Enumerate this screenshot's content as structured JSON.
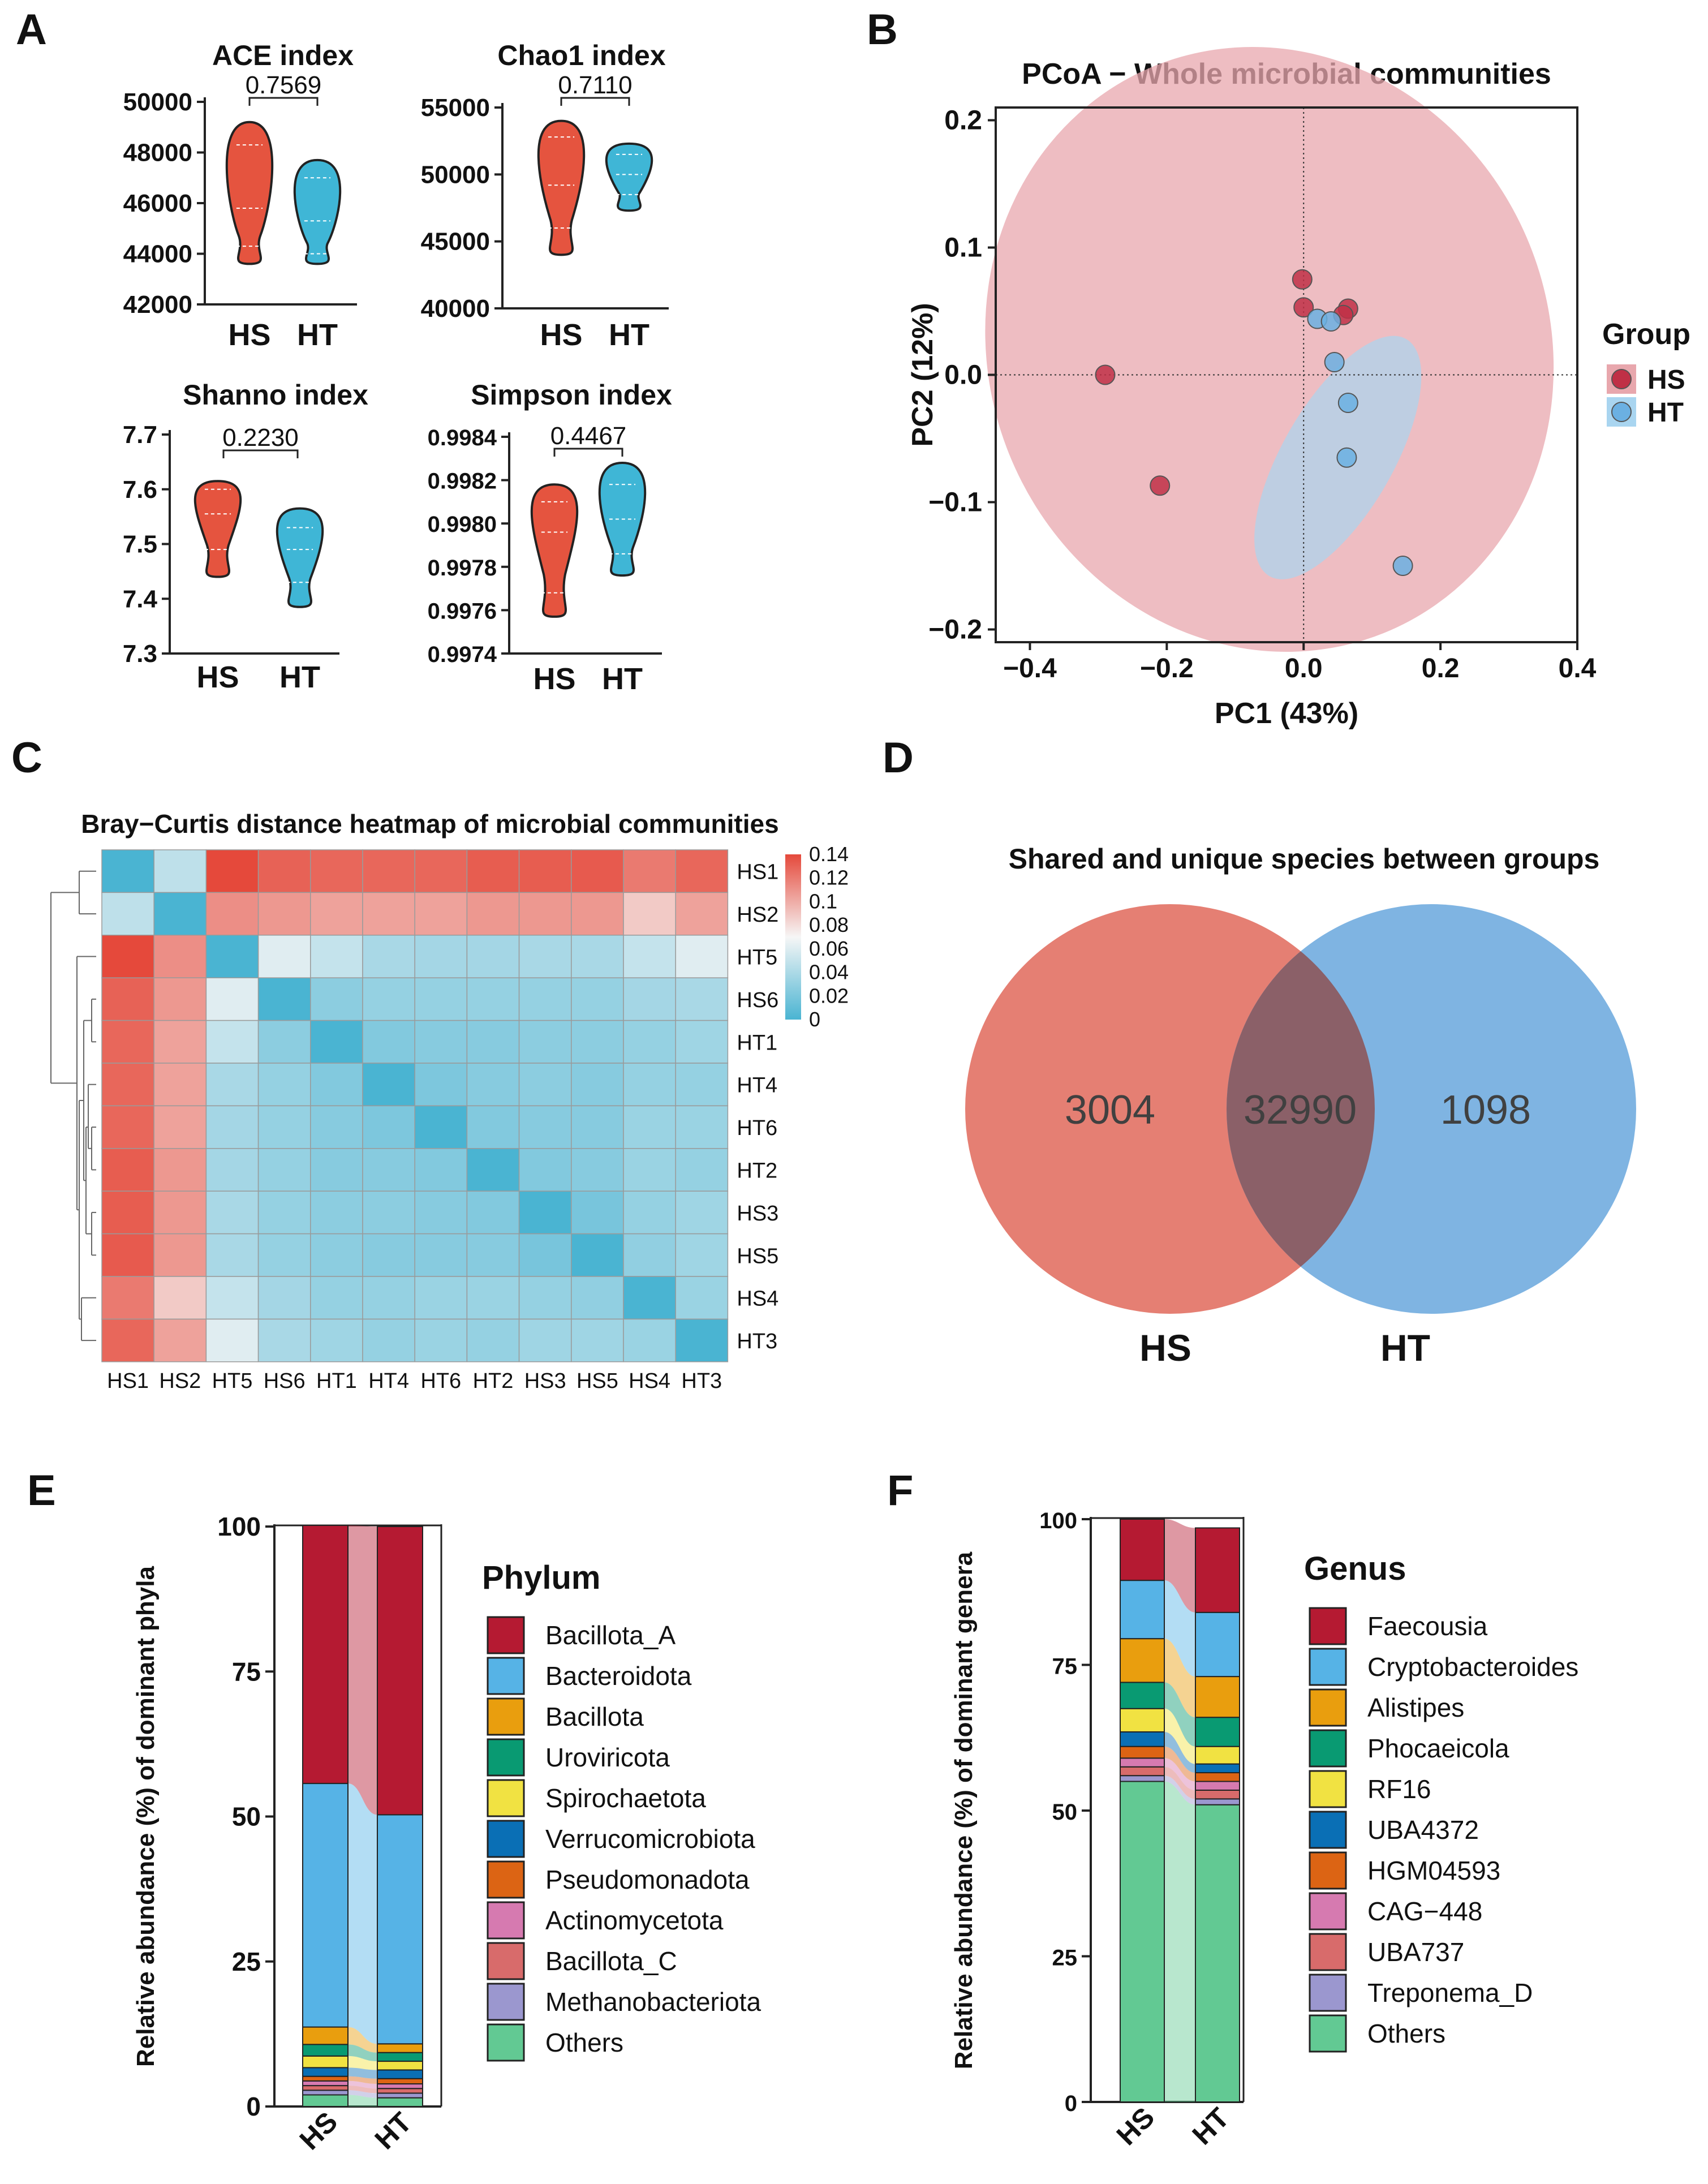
{
  "panel_letters": [
    "A",
    "B",
    "C",
    "D",
    "E",
    "F"
  ],
  "colors": {
    "HS": "#e5543f",
    "HT": "#3fb6d6",
    "pcoa_HS": "#c03046",
    "pcoa_HT": "#6bb0e2",
    "venn_HS": "#e57f73",
    "venn_HT": "#7fb4e2",
    "venn_overlap": "#8b6068",
    "heat_low": "#4ab4d2",
    "heat_mid": "#f6f6f6",
    "heat_high": "#e5493b"
  },
  "chart_data": [
    {
      "panel": "A",
      "type": "violin",
      "title": "ACE index",
      "categories": [
        "HS",
        "HT"
      ],
      "p_value": "0.7569",
      "yticks": [
        "42000",
        "44000",
        "46000",
        "48000",
        "50000"
      ],
      "ylim": [
        42000,
        50000
      ],
      "series": [
        {
          "name": "HS",
          "min": 43600,
          "max": 49200,
          "median": 45800,
          "q1": 44300,
          "q3": 48300
        },
        {
          "name": "HT",
          "min": 43600,
          "max": 47700,
          "median": 45300,
          "q1": 44000,
          "q3": 47000
        }
      ]
    },
    {
      "panel": "A",
      "type": "violin",
      "title": "Chao1 index",
      "categories": [
        "HS",
        "HT"
      ],
      "p_value": "0.7110",
      "yticks": [
        "40000",
        "45000",
        "50000",
        "55000"
      ],
      "ylim": [
        40000,
        55000
      ],
      "series": [
        {
          "name": "HS",
          "min": 44000,
          "max": 54000,
          "median": 49200,
          "q1": 46000,
          "q3": 52800
        },
        {
          "name": "HT",
          "min": 47300,
          "max": 52300,
          "median": 50000,
          "q1": 48500,
          "q3": 51500
        }
      ]
    },
    {
      "panel": "A",
      "type": "violin",
      "title": "Shanno index",
      "categories": [
        "HS",
        "HT"
      ],
      "p_value": "0.2230",
      "yticks": [
        "7.3",
        "7.4",
        "7.5",
        "7.6",
        "7.7"
      ],
      "ylim": [
        7.3,
        7.7
      ],
      "series": [
        {
          "name": "HS",
          "min": 7.44,
          "max": 7.615,
          "median": 7.555,
          "q1": 7.49,
          "q3": 7.6
        },
        {
          "name": "HT",
          "min": 7.385,
          "max": 7.565,
          "median": 7.49,
          "q1": 7.43,
          "q3": 7.53
        }
      ]
    },
    {
      "panel": "A",
      "type": "violin",
      "title": "Simpson index",
      "categories": [
        "HS",
        "HT"
      ],
      "p_value": "0.4467",
      "yticks": [
        "0.9974",
        "0.9976",
        "0.9978",
        "0.9980",
        "0.9982",
        "0.9984"
      ],
      "ylim": [
        0.9974,
        0.9984
      ],
      "series": [
        {
          "name": "HS",
          "min": 0.99757,
          "max": 0.99818,
          "median": 0.99796,
          "q1": 0.99768,
          "q3": 0.9981
        },
        {
          "name": "HT",
          "min": 0.99776,
          "max": 0.99828,
          "median": 0.99802,
          "q1": 0.99786,
          "q3": 0.99818
        }
      ]
    },
    {
      "panel": "B",
      "type": "scatter",
      "title": "PCoA − Whole microbial communities",
      "xlabel": "PC1 (43%)",
      "ylabel": "PC2 (12%)",
      "xlim": [
        -0.45,
        0.4
      ],
      "ylim": [
        -0.21,
        0.21
      ],
      "xticks": [
        "−0.4",
        "−0.2",
        "0.0",
        "0.2",
        "0.4"
      ],
      "xtick_values": [
        -0.4,
        -0.2,
        0.0,
        0.2,
        0.4
      ],
      "yticks": [
        "−0.2",
        "−0.1",
        "0.0",
        "0.1",
        "0.2"
      ],
      "ytick_values": [
        -0.2,
        -0.1,
        0.0,
        0.1,
        0.2
      ],
      "legend_title": "Group",
      "legend_position": "right",
      "series": [
        {
          "name": "HS",
          "points": [
            [
              -0.29,
              0.0
            ],
            [
              -0.21,
              -0.087
            ],
            [
              -0.002,
              0.075
            ],
            [
              0.0,
              0.053
            ],
            [
              0.065,
              0.052
            ],
            [
              0.058,
              0.047
            ]
          ]
        },
        {
          "name": "HT",
          "points": [
            [
              0.02,
              0.044
            ],
            [
              0.04,
              0.042
            ],
            [
              0.045,
              0.01
            ],
            [
              0.065,
              -0.022
            ],
            [
              0.063,
              -0.065
            ],
            [
              0.145,
              -0.15
            ]
          ]
        }
      ],
      "ellipses": [
        {
          "name": "HS",
          "center": [
            -0.05,
            0.02
          ],
          "rx": 0.41,
          "ry": 0.155,
          "angle_deg": -22
        },
        {
          "name": "HT",
          "center": [
            0.05,
            -0.065
          ],
          "rx": 0.2,
          "ry": 0.028,
          "angle_deg": -60
        }
      ]
    },
    {
      "panel": "C",
      "type": "heatmap",
      "title": "Bray−Curtis distance heatmap of microbial communities",
      "rows": [
        "HS1",
        "HS2",
        "HT5",
        "HS6",
        "HT1",
        "HT4",
        "HT6",
        "HT2",
        "HS3",
        "HS5",
        "HS4",
        "HT3"
      ],
      "columns": [
        "HS1",
        "HS2",
        "HT5",
        "HS6",
        "HT1",
        "HT4",
        "HT6",
        "HT2",
        "HS3",
        "HS5",
        "HS4",
        "HT3"
      ],
      "scale_ticks": [
        "0.14",
        "0.12",
        "0.1",
        "0.08",
        "0.06",
        "0.04",
        "0.02",
        "0"
      ],
      "range": [
        0,
        0.14
      ],
      "values": [
        [
          0.0,
          0.045,
          0.14,
          0.13,
          0.128,
          0.128,
          0.128,
          0.132,
          0.132,
          0.133,
          0.12,
          0.128
        ],
        [
          0.045,
          0.0,
          0.112,
          0.108,
          0.104,
          0.104,
          0.104,
          0.108,
          0.108,
          0.108,
          0.088,
          0.104
        ],
        [
          0.14,
          0.112,
          0.0,
          0.06,
          0.048,
          0.036,
          0.034,
          0.034,
          0.036,
          0.036,
          0.048,
          0.06
        ],
        [
          0.13,
          0.108,
          0.06,
          0.0,
          0.024,
          0.028,
          0.028,
          0.028,
          0.028,
          0.028,
          0.034,
          0.036
        ],
        [
          0.128,
          0.104,
          0.048,
          0.024,
          0.0,
          0.02,
          0.022,
          0.022,
          0.024,
          0.024,
          0.028,
          0.032
        ],
        [
          0.128,
          0.104,
          0.036,
          0.028,
          0.02,
          0.0,
          0.018,
          0.022,
          0.024,
          0.022,
          0.028,
          0.028
        ],
        [
          0.128,
          0.104,
          0.034,
          0.028,
          0.022,
          0.018,
          0.0,
          0.02,
          0.022,
          0.022,
          0.03,
          0.03
        ],
        [
          0.132,
          0.108,
          0.034,
          0.028,
          0.022,
          0.022,
          0.02,
          0.0,
          0.02,
          0.022,
          0.03,
          0.028
        ],
        [
          0.132,
          0.108,
          0.036,
          0.028,
          0.024,
          0.024,
          0.022,
          0.02,
          0.0,
          0.016,
          0.028,
          0.032
        ],
        [
          0.133,
          0.108,
          0.036,
          0.028,
          0.024,
          0.022,
          0.022,
          0.022,
          0.016,
          0.0,
          0.026,
          0.032
        ],
        [
          0.12,
          0.088,
          0.048,
          0.034,
          0.028,
          0.028,
          0.03,
          0.03,
          0.028,
          0.026,
          0.0,
          0.03
        ],
        [
          0.128,
          0.104,
          0.06,
          0.036,
          0.032,
          0.028,
          0.03,
          0.028,
          0.032,
          0.032,
          0.03,
          0.0
        ]
      ]
    },
    {
      "panel": "D",
      "type": "venn",
      "title": "Shared and unique species between groups",
      "sets": [
        "HS",
        "HT"
      ],
      "HS_only": "3004",
      "shared": "32990",
      "HT_only": "1098"
    },
    {
      "panel": "E",
      "type": "stacked_bar",
      "legend_title": "Phylum",
      "ylabel": "Relative abundance (%) of dominant phyla",
      "categories": [
        "HS",
        "HT"
      ],
      "ylim": [
        0,
        100
      ],
      "yticks": [
        "0",
        "25",
        "50",
        "75",
        "100"
      ],
      "series": [
        {
          "name": "Others",
          "color": "#62c993",
          "values": [
            2.0,
            1.5
          ]
        },
        {
          "name": "Methanobacteriota",
          "color": "#9b97cf",
          "values": [
            0.8,
            0.8
          ]
        },
        {
          "name": "Bacillota_C",
          "color": "#d86b6b",
          "values": [
            0.8,
            0.8
          ]
        },
        {
          "name": "Actinomycetota",
          "color": "#d67ab0",
          "values": [
            0.8,
            0.8
          ]
        },
        {
          "name": "Pseudomonadota",
          "color": "#dc6414",
          "values": [
            0.8,
            0.9
          ]
        },
        {
          "name": "Verrucomicrobiota",
          "color": "#0a6fb5",
          "values": [
            1.5,
            1.5
          ]
        },
        {
          "name": "Spirochaetota",
          "color": "#f1e242",
          "values": [
            2.0,
            1.5
          ]
        },
        {
          "name": "Uroviricota",
          "color": "#099a72",
          "values": [
            2.0,
            1.5
          ]
        },
        {
          "name": "Bacillota",
          "color": "#e99e0e",
          "values": [
            3.0,
            1.5
          ]
        },
        {
          "name": "Bacteroidota",
          "color": "#56b3e6",
          "values": [
            42.0,
            39.5
          ]
        },
        {
          "name": "Bacillota_A",
          "color": "#b51a32",
          "values": [
            44.5,
            49.7
          ]
        }
      ]
    },
    {
      "panel": "F",
      "type": "stacked_bar",
      "legend_title": "Genus",
      "ylabel": "Relative abundance (%) of dominant genera",
      "categories": [
        "HS",
        "HT"
      ],
      "ylim": [
        0,
        100
      ],
      "yticks": [
        "0",
        "25",
        "50",
        "75",
        "100"
      ],
      "series": [
        {
          "name": "Others",
          "color": "#62c993",
          "values": [
            55.0,
            51.0
          ]
        },
        {
          "name": "Treponema_D",
          "color": "#9b97cf",
          "values": [
            1.0,
            1.0
          ]
        },
        {
          "name": "UBA737",
          "color": "#d86b6b",
          "values": [
            1.5,
            1.5
          ]
        },
        {
          "name": "CAG−448",
          "color": "#d67ab0",
          "values": [
            1.5,
            1.5
          ]
        },
        {
          "name": "HGM04593",
          "color": "#dc6414",
          "values": [
            2.0,
            1.5
          ]
        },
        {
          "name": "UBA4372",
          "color": "#0a6fb5",
          "values": [
            2.5,
            1.5
          ]
        },
        {
          "name": "RF16",
          "color": "#f1e242",
          "values": [
            4.0,
            3.0
          ]
        },
        {
          "name": "Phocaeicola",
          "color": "#099a72",
          "values": [
            4.5,
            5.0
          ]
        },
        {
          "name": "Alistipes",
          "color": "#e99e0e",
          "values": [
            7.5,
            7.0
          ]
        },
        {
          "name": "Cryptobacteroides",
          "color": "#56b3e6",
          "values": [
            10.0,
            11.0
          ]
        },
        {
          "name": "Faecousia",
          "color": "#b51a32",
          "values": [
            10.5,
            14.5
          ]
        }
      ]
    }
  ]
}
